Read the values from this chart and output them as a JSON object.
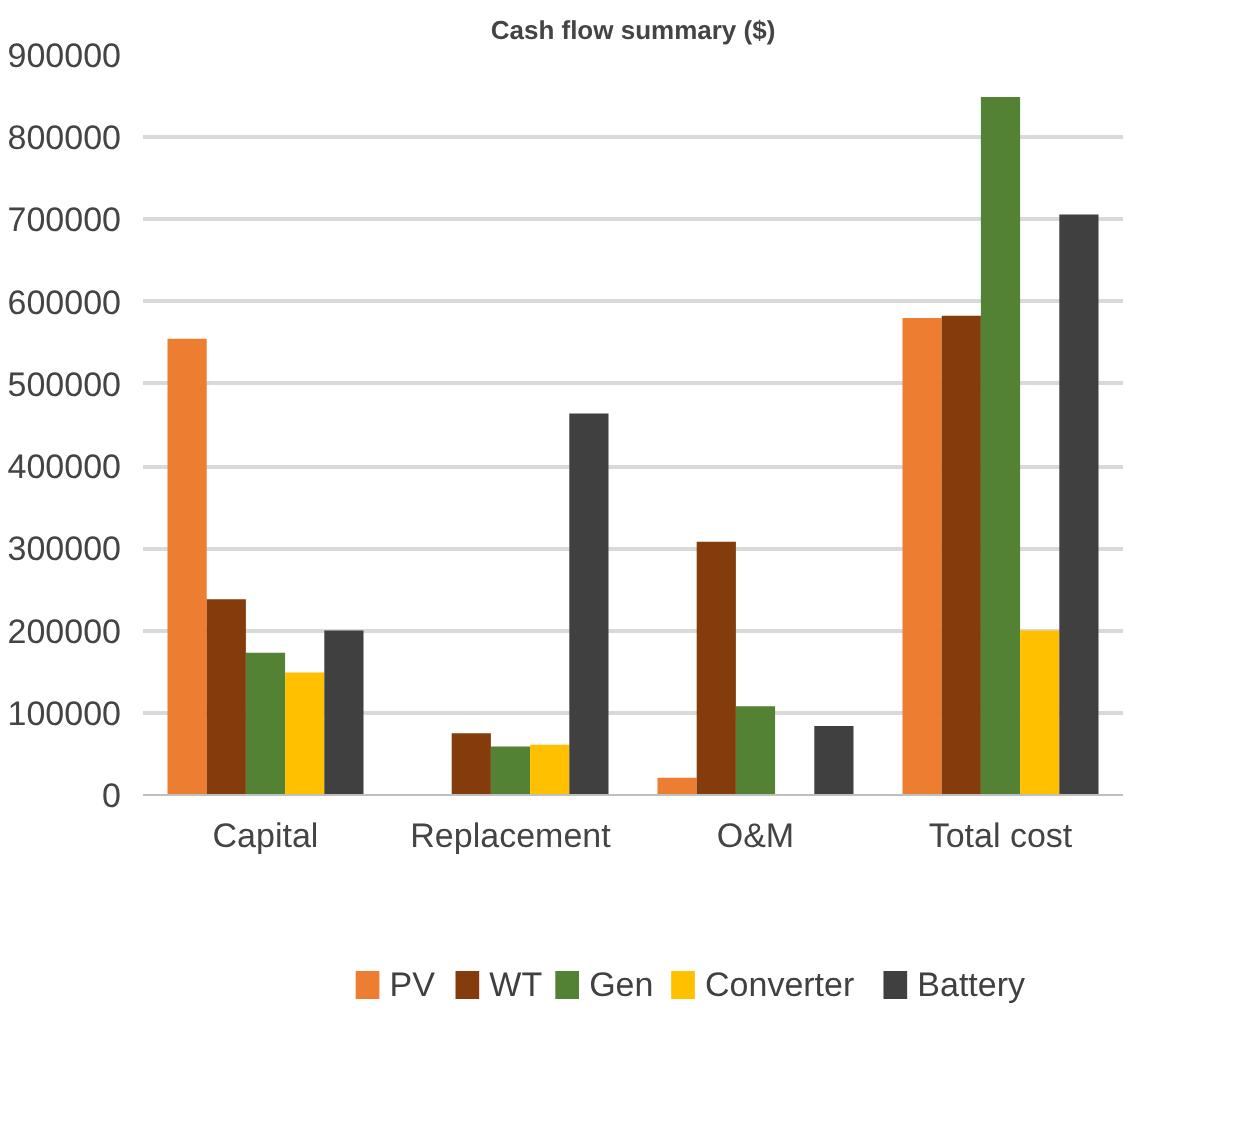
{
  "chart_data": {
    "type": "bar",
    "title": "Cash flow summary ($)",
    "categories": [
      "Capital",
      "Replacement",
      "O&M",
      "Total cost"
    ],
    "series": [
      {
        "name": "PV",
        "color": "#ed7d31",
        "values": [
          555000,
          0,
          21000,
          580000
        ]
      },
      {
        "name": "WT",
        "color": "#843c0c",
        "values": [
          238000,
          75000,
          308000,
          583000
        ]
      },
      {
        "name": "Gen",
        "color": "#548235",
        "values": [
          173000,
          59000,
          108000,
          849000
        ]
      },
      {
        "name": "Converter",
        "color": "#ffc000",
        "values": [
          149000,
          61000,
          0,
          200000
        ]
      },
      {
        "name": "Battery",
        "color": "#404040",
        "values": [
          200000,
          464000,
          84000,
          706000
        ]
      }
    ],
    "ylim": [
      0,
      900000
    ],
    "yticks": [
      0,
      100000,
      200000,
      300000,
      400000,
      500000,
      600000,
      700000,
      800000,
      900000
    ],
    "grid": "y",
    "legend": "bottom"
  }
}
